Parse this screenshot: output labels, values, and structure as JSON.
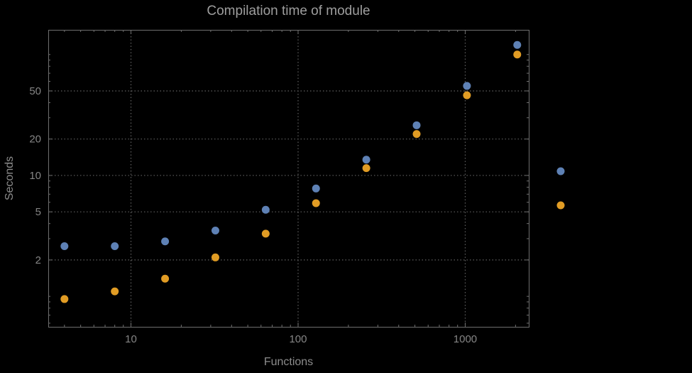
{
  "chart_data": {
    "type": "scatter",
    "title": "Compilation time of module",
    "xlabel": "Functions",
    "ylabel": "Seconds",
    "x_scale": "log",
    "y_scale": "log",
    "xlim": [
      3.2,
      2400
    ],
    "ylim": [
      0.56,
      160
    ],
    "grid": true,
    "x_ticks": {
      "values": [
        10,
        100,
        1000
      ],
      "labels": [
        "10",
        "100",
        "1000"
      ]
    },
    "y_ticks": {
      "values": [
        2,
        5,
        10,
        20,
        50
      ],
      "labels": [
        "2",
        "5",
        "10",
        "20",
        "50"
      ]
    },
    "x": [
      4,
      8,
      16,
      32,
      64,
      128,
      256,
      512,
      1024,
      2048
    ],
    "series": [
      {
        "name": "blue",
        "color": "#5E81B5",
        "values": [
          2.6,
          2.6,
          2.85,
          3.5,
          5.2,
          7.8,
          13.5,
          26,
          55,
          120
        ]
      },
      {
        "name": "orange",
        "color": "#E19C24",
        "values": [
          0.95,
          1.1,
          1.4,
          2.1,
          3.3,
          5.9,
          11.5,
          22,
          46,
          100
        ]
      }
    ],
    "legend": {
      "position": "right-outside",
      "markers": [
        {
          "color": "#5E81B5"
        },
        {
          "color": "#E19C24"
        }
      ]
    }
  },
  "style": {
    "background": "#000000",
    "title_color": "#9e9e9e",
    "axis_label_color": "#8c8c8c",
    "tick_label_color": "#858585",
    "grid_color": "#606060",
    "frame_color": "#6f6f6f"
  }
}
